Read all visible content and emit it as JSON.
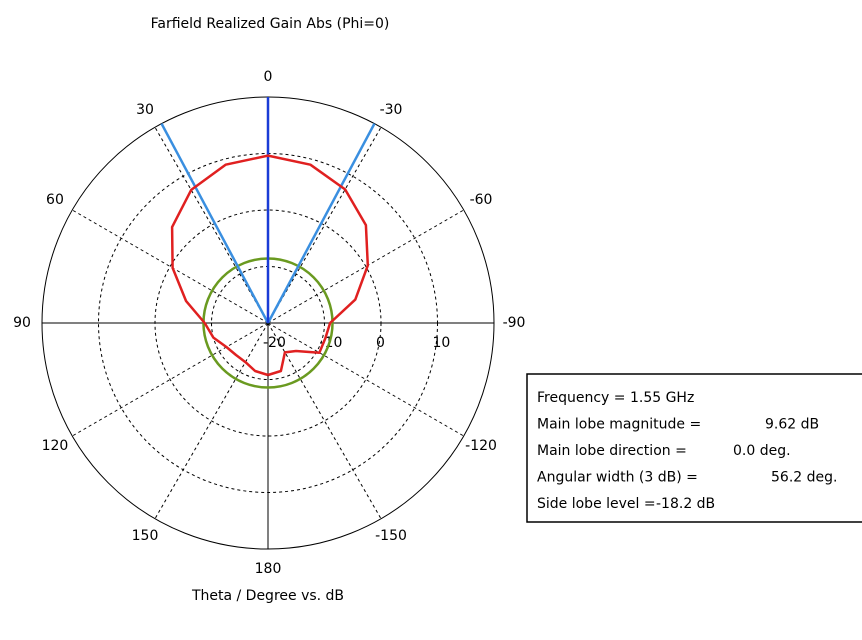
{
  "chart_data": {
    "type": "polar",
    "title": "Farfield Realized Gain Abs (Phi=0)",
    "axis_label": "Theta / Degree vs. dB",
    "rlim": [
      -20,
      20
    ],
    "rticks": [
      -20,
      -10,
      0,
      10
    ],
    "thetaticks": [
      0,
      30,
      60,
      90,
      120,
      150,
      180,
      -150,
      -120,
      -90,
      -60,
      -30
    ],
    "theta": [
      -180,
      -165,
      -150,
      -135,
      -120,
      -105,
      -90,
      -75,
      -60,
      -45,
      -30,
      -15,
      0,
      15,
      30,
      45,
      60,
      75,
      90,
      105,
      120,
      135,
      150,
      165,
      180
    ],
    "series": [
      {
        "color": "#e02020",
        "values": [
          -10.8,
          -11.2,
          -14,
          -13,
          -9.5,
          -9.5,
          -9,
          -4,
          0.4,
          4.5,
          7.3,
          9.0,
          9.62,
          9.0,
          7.2,
          4,
          -0.5,
          -5,
          -8.8,
          -10,
          -11.5,
          -12,
          -12,
          -11.2,
          -10.8
        ]
      }
    ],
    "main_direction": {
      "value": 0,
      "color": "#1a3cd6"
    },
    "beam_edges": {
      "values": [
        28.1,
        -28.1
      ],
      "color": "#3a8fe0"
    },
    "side_lobe_circle": {
      "value": -8.58,
      "color": "#6a9a20"
    },
    "info": [
      {
        "label": "Frequency = 1.55 GHz",
        "value": ""
      },
      {
        "label": "Main lobe magnitude =",
        "value": "9.62 dB"
      },
      {
        "label": "Main lobe direction =",
        "value": "0.0 deg."
      },
      {
        "label": "Angular width (3 dB) =",
        "value": "56.2 deg."
      },
      {
        "label": "Side lobe level =",
        "value": "-18.2 dB"
      }
    ]
  }
}
